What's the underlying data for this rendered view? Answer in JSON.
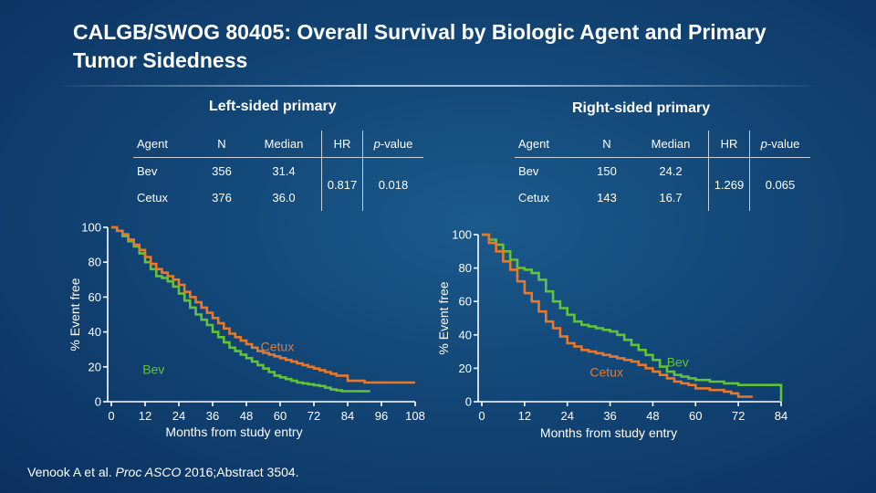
{
  "title": "CALGB/SWOG 80405: Overall Survival by Biologic Agent and Primary Tumor Sidedness",
  "citation": {
    "before": "Venook A et al. ",
    "italic": "Proc ASCO",
    "after": " 2016;Abstract 3504."
  },
  "colors": {
    "bev": "#62c23b",
    "cetux": "#e8782c"
  },
  "panels": [
    {
      "title": "Left-sided primary",
      "table": {
        "headers": {
          "agent": "Agent",
          "n": "N",
          "median": "Median",
          "hr": "HR",
          "p": "p",
          "p_suffix": "-value"
        },
        "rows": [
          {
            "agent": "Bev",
            "n": "356",
            "median": "31.4"
          },
          {
            "agent": "Cetux",
            "n": "376",
            "median": "36.0"
          }
        ],
        "hr": "0.817",
        "p": "0.018"
      }
    },
    {
      "title": "Right-sided primary",
      "table": {
        "headers": {
          "agent": "Agent",
          "n": "N",
          "median": "Median",
          "hr": "HR",
          "p": "p",
          "p_suffix": "-value"
        },
        "rows": [
          {
            "agent": "Bev",
            "n": "150",
            "median": "24.2"
          },
          {
            "agent": "Cetux",
            "n": "143",
            "median": "16.7"
          }
        ],
        "hr": "1.269",
        "p": "0.065"
      }
    }
  ],
  "chart_data": [
    {
      "type": "line",
      "title": "Left-sided primary",
      "xlabel": "Months from study entry",
      "ylabel": "% Event free",
      "xlim": [
        0,
        108
      ],
      "ylim": [
        0,
        100
      ],
      "xticks": [
        0,
        12,
        24,
        36,
        48,
        60,
        72,
        84,
        96,
        108
      ],
      "yticks": [
        0,
        20,
        40,
        60,
        80,
        100
      ],
      "series": [
        {
          "name": "Bev",
          "label_pos": [
            15,
            16
          ],
          "x": [
            0,
            2,
            4,
            6,
            8,
            10,
            12,
            14,
            16,
            18,
            20,
            22,
            24,
            26,
            28,
            30,
            32,
            34,
            36,
            38,
            40,
            42,
            44,
            46,
            48,
            50,
            52,
            54,
            56,
            58,
            60,
            62,
            64,
            66,
            68,
            70,
            72,
            74,
            76,
            78,
            80,
            82,
            84,
            88,
            92
          ],
          "y": [
            100,
            98,
            95,
            92,
            89,
            85,
            80,
            76,
            72,
            71,
            69,
            66,
            62,
            58,
            54,
            50,
            47,
            44,
            40,
            37,
            34,
            31,
            29,
            27,
            25,
            23,
            21,
            19,
            17,
            15,
            14,
            13,
            12,
            11,
            10.5,
            10,
            9.5,
            9,
            8,
            7,
            6.5,
            6,
            6,
            6,
            6
          ]
        },
        {
          "name": "Cetux",
          "label_pos": [
            59,
            29
          ],
          "x": [
            0,
            2,
            4,
            6,
            8,
            10,
            12,
            14,
            16,
            18,
            20,
            22,
            24,
            26,
            28,
            30,
            32,
            34,
            36,
            38,
            40,
            42,
            44,
            46,
            48,
            50,
            52,
            54,
            56,
            58,
            60,
            62,
            64,
            66,
            68,
            70,
            72,
            74,
            76,
            78,
            80,
            84,
            90,
            96,
            102,
            108
          ],
          "y": [
            100,
            98,
            96,
            93,
            90,
            87,
            83,
            79,
            76,
            74,
            72,
            70,
            67,
            63,
            60,
            57,
            54,
            51,
            48,
            45,
            42,
            39,
            37,
            35,
            33,
            31,
            29,
            28,
            27,
            26,
            25,
            24,
            23,
            22,
            21,
            20,
            19,
            18,
            17,
            16,
            15,
            12,
            11,
            11,
            11,
            11
          ]
        }
      ]
    },
    {
      "type": "line",
      "title": "Right-sided primary",
      "xlabel": "Months from study entry",
      "ylabel": "% Event free",
      "xlim": [
        0,
        84
      ],
      "ylim": [
        0,
        100
      ],
      "xticks": [
        0,
        12,
        24,
        36,
        48,
        60,
        72,
        84
      ],
      "yticks": [
        0,
        20,
        40,
        60,
        80,
        100
      ],
      "series": [
        {
          "name": "Bev",
          "label_pos": [
            55,
            21
          ],
          "x": [
            0,
            2,
            4,
            6,
            8,
            10,
            12,
            14,
            16,
            18,
            20,
            22,
            24,
            26,
            28,
            30,
            32,
            34,
            36,
            38,
            40,
            42,
            44,
            46,
            48,
            50,
            52,
            54,
            56,
            58,
            60,
            64,
            68,
            72,
            76,
            80,
            82,
            84
          ],
          "y": [
            100,
            97,
            94,
            90,
            85,
            80,
            79,
            77,
            73,
            66,
            60,
            56,
            52,
            48,
            46,
            45,
            44,
            43,
            42,
            40,
            37,
            34,
            31,
            28,
            25,
            21,
            18,
            16,
            15,
            14,
            13,
            12,
            11,
            10,
            10,
            10,
            10,
            0
          ]
        },
        {
          "name": "Cetux",
          "label_pos": [
            35,
            15
          ],
          "x": [
            0,
            2,
            4,
            6,
            8,
            10,
            12,
            14,
            16,
            18,
            20,
            22,
            24,
            26,
            28,
            30,
            32,
            34,
            36,
            38,
            40,
            42,
            44,
            46,
            48,
            50,
            52,
            54,
            56,
            58,
            60,
            64,
            68,
            70,
            72,
            76
          ],
          "y": [
            100,
            95,
            90,
            84,
            79,
            72,
            65,
            60,
            54,
            48,
            44,
            39,
            35,
            33,
            31,
            30,
            29,
            28,
            27,
            26,
            25,
            24,
            22,
            20,
            18,
            16,
            14,
            12,
            11,
            10,
            8,
            7,
            6,
            5,
            3,
            3
          ]
        }
      ]
    }
  ]
}
